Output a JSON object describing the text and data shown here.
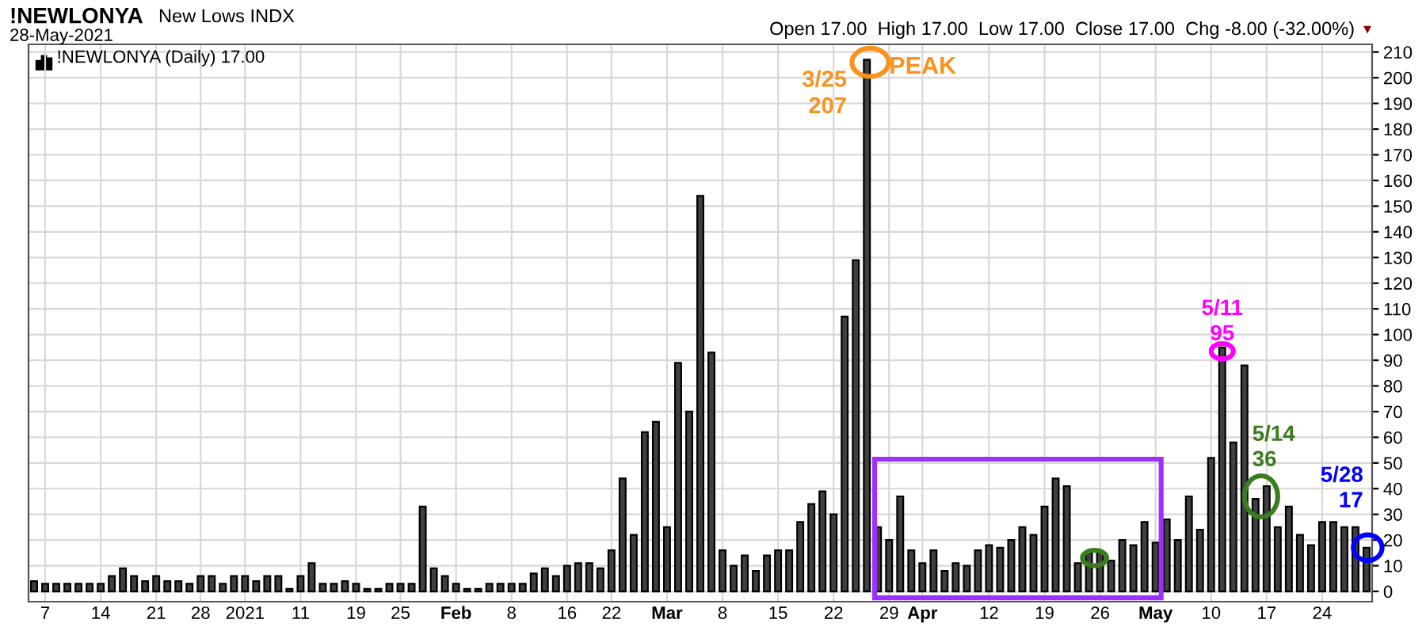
{
  "chart_data": {
    "type": "bar",
    "title": "!NEWLONYA",
    "subtitle": "New Lows INDX",
    "categories": [
      null,
      "7",
      null,
      null,
      null,
      null,
      "14",
      null,
      null,
      null,
      null,
      "21",
      null,
      null,
      null,
      "28",
      null,
      null,
      null,
      "2021",
      null,
      null,
      null,
      null,
      "11",
      null,
      null,
      null,
      null,
      "19",
      null,
      null,
      null,
      "25",
      null,
      null,
      null,
      null,
      "Feb",
      null,
      null,
      null,
      null,
      "8",
      null,
      null,
      null,
      null,
      "16",
      null,
      null,
      null,
      "22",
      null,
      null,
      null,
      null,
      "Mar",
      null,
      null,
      null,
      null,
      "8",
      null,
      null,
      null,
      null,
      "15",
      null,
      null,
      null,
      null,
      "22",
      null,
      null,
      null,
      null,
      "29",
      null,
      null,
      "Apr",
      null,
      null,
      null,
      null,
      null,
      "12",
      null,
      null,
      null,
      null,
      "19",
      null,
      null,
      null,
      null,
      "26",
      null,
      null,
      null,
      null,
      "May",
      null,
      null,
      null,
      null,
      "10",
      null,
      null,
      null,
      null,
      "17",
      null,
      null,
      null,
      null,
      "24",
      null,
      null,
      null,
      null
    ],
    "values": [
      4,
      3,
      3,
      3,
      3,
      3,
      3,
      6,
      9,
      6,
      4,
      6,
      4,
      4,
      3,
      6,
      6,
      3,
      6,
      6,
      4,
      6,
      6,
      1,
      6,
      11,
      3,
      3,
      4,
      3,
      1,
      1,
      3,
      3,
      3,
      33,
      9,
      6,
      3,
      1,
      1,
      3,
      3,
      3,
      3,
      7,
      9,
      6,
      10,
      11,
      11,
      9,
      16,
      44,
      22,
      62,
      66,
      25,
      89,
      70,
      154,
      93,
      16,
      10,
      14,
      8,
      14,
      16,
      16,
      27,
      34,
      39,
      30,
      107,
      129,
      207,
      25,
      20,
      37,
      16,
      11,
      16,
      8,
      11,
      10,
      16,
      18,
      17,
      20,
      25,
      22,
      33,
      44,
      41,
      11,
      15,
      15,
      12,
      20,
      18,
      27,
      19,
      28,
      20,
      37,
      24,
      52,
      95,
      58,
      88,
      36,
      41,
      25,
      33,
      22,
      18,
      27,
      27,
      25,
      25,
      17
    ],
    "color": "#404040",
    "ylim": [
      -4,
      213
    ],
    "yticks": [
      0,
      10,
      20,
      30,
      40,
      50,
      60,
      70,
      80,
      90,
      100,
      110,
      120,
      130,
      140,
      150,
      160,
      170,
      180,
      190,
      200,
      210
    ],
    "grid": true,
    "annotations": [
      "28-May-2021",
      "!NEWLONYA (Daily) 17.00",
      "Open 17.00  High 17.00  Low 17.00  Close 17.00  Chg -8.00 (-32.00%)",
      "▼",
      "PEAK",
      "3/25\n207",
      "5/11\n95",
      "5/14\n36",
      "5/28\n17"
    ]
  }
}
